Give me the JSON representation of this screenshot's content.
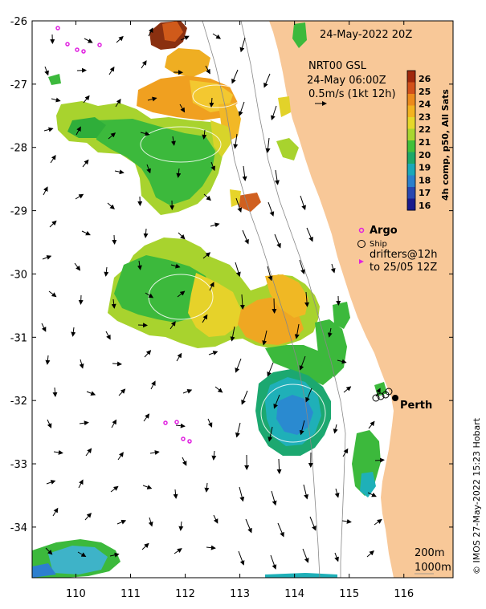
{
  "date_label": "24-May-2022 20Z",
  "product": {
    "line1": "NRT00 GSL",
    "line2": "24-May 06:00Z",
    "line3": "0.5m/s (1kt 12h)"
  },
  "colorbar": {
    "title": "4h comp, p50, All Sats",
    "ticks": [
      "26",
      "25",
      "24",
      "23",
      "22",
      "21",
      "20",
      "19",
      "18",
      "17",
      "16"
    ],
    "colors": [
      "#a0280c",
      "#d2501a",
      "#ec8a1c",
      "#f3b320",
      "#e6d82a",
      "#a8d630",
      "#40c03a",
      "#1ca868",
      "#1aa8b8",
      "#2b7fcc",
      "#2846b0",
      "#1a1a8c"
    ]
  },
  "legend": {
    "argo": "Argo",
    "ship": "Ship",
    "drifters_line1": "drifters@12h",
    "drifters_line2": "to 25/05 12Z"
  },
  "place": "Perth",
  "depth_labels": [
    "200m",
    "1000m"
  ],
  "credit": "© IMOS 27-May-2022 15:23 Hobart",
  "axes": {
    "lon_ticks": [
      "110",
      "111",
      "112",
      "113",
      "114",
      "115",
      "116"
    ],
    "lat_ticks": [
      "-26",
      "-27",
      "-28",
      "-29",
      "-30",
      "-31",
      "-32",
      "-33",
      "-34"
    ],
    "lon_range": [
      109.2,
      116.9
    ],
    "lat_range": [
      -34.8,
      -26.0
    ]
  },
  "colors": {
    "land": "#f8c898",
    "ocean": "#ffffff",
    "argo": "#e020e0",
    "drifter": "#e020e0"
  },
  "icons": [
    "current-arrow-icon",
    "argo-marker-icon",
    "ship-marker-icon",
    "drifter-marker-icon"
  ]
}
